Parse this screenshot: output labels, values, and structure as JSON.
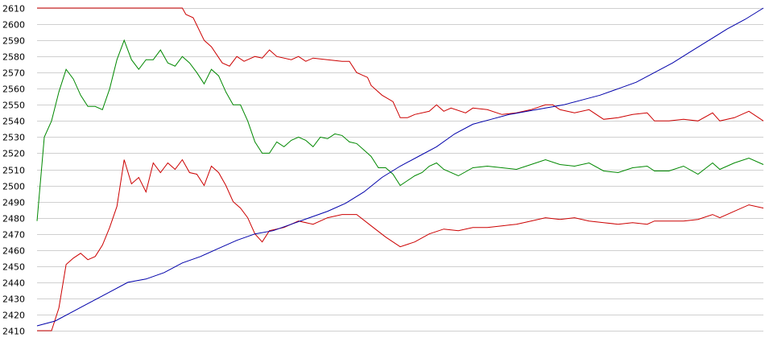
{
  "chart_data": {
    "type": "line",
    "title": "",
    "xlabel": "",
    "ylabel": "",
    "ylim": [
      2410,
      2610
    ],
    "xlim": [
      0,
      200
    ],
    "y_ticks": [
      "2410",
      "2420",
      "2430",
      "2440",
      "2450",
      "2460",
      "2470",
      "2480",
      "2490",
      "2500",
      "2510",
      "2520",
      "2530",
      "2540",
      "2550",
      "2560",
      "2570",
      "2580",
      "2590",
      "2600",
      "2610"
    ],
    "grid": "horizontal",
    "legend": "none",
    "series": [
      {
        "color": "#cc0000",
        "points": [
          [
            0,
            2610
          ],
          [
            20,
            2610
          ],
          [
            30,
            2610
          ],
          [
            40,
            2610
          ],
          [
            41,
            2606
          ],
          [
            43,
            2604
          ],
          [
            46,
            2590
          ],
          [
            48,
            2586
          ],
          [
            51,
            2576
          ],
          [
            53,
            2574
          ],
          [
            55,
            2580
          ],
          [
            57,
            2577
          ],
          [
            60,
            2580
          ],
          [
            62,
            2579
          ],
          [
            64,
            2584
          ],
          [
            66,
            2580
          ],
          [
            70,
            2578
          ],
          [
            72,
            2580
          ],
          [
            74,
            2577
          ],
          [
            76,
            2579
          ],
          [
            80,
            2578
          ],
          [
            84,
            2577
          ],
          [
            86,
            2577
          ],
          [
            88,
            2570
          ],
          [
            91,
            2567
          ],
          [
            92,
            2562
          ],
          [
            95,
            2556
          ],
          [
            98,
            2552
          ],
          [
            100,
            2542
          ],
          [
            102,
            2542
          ],
          [
            104,
            2544
          ],
          [
            108,
            2546
          ],
          [
            110,
            2550
          ],
          [
            112,
            2546
          ],
          [
            114,
            2548
          ],
          [
            118,
            2545
          ],
          [
            120,
            2548
          ],
          [
            124,
            2547
          ],
          [
            128,
            2544
          ],
          [
            132,
            2545
          ],
          [
            136,
            2547
          ],
          [
            140,
            2550
          ],
          [
            142,
            2550
          ],
          [
            144,
            2547
          ],
          [
            148,
            2545
          ],
          [
            152,
            2547
          ],
          [
            156,
            2541
          ],
          [
            160,
            2542
          ],
          [
            164,
            2544
          ],
          [
            168,
            2545
          ],
          [
            170,
            2540
          ],
          [
            174,
            2540
          ],
          [
            178,
            2541
          ],
          [
            182,
            2540
          ],
          [
            186,
            2545
          ],
          [
            188,
            2540
          ],
          [
            192,
            2542
          ],
          [
            196,
            2546
          ],
          [
            200,
            2540
          ]
        ]
      },
      {
        "color": "#008800",
        "points": [
          [
            0,
            2478
          ],
          [
            2,
            2530
          ],
          [
            4,
            2540
          ],
          [
            6,
            2558
          ],
          [
            8,
            2572
          ],
          [
            10,
            2566
          ],
          [
            12,
            2556
          ],
          [
            14,
            2549
          ],
          [
            16,
            2549
          ],
          [
            18,
            2547
          ],
          [
            20,
            2560
          ],
          [
            22,
            2578
          ],
          [
            24,
            2590
          ],
          [
            26,
            2578
          ],
          [
            28,
            2572
          ],
          [
            30,
            2578
          ],
          [
            32,
            2578
          ],
          [
            34,
            2584
          ],
          [
            36,
            2576
          ],
          [
            38,
            2574
          ],
          [
            40,
            2580
          ],
          [
            42,
            2576
          ],
          [
            44,
            2570
          ],
          [
            46,
            2563
          ],
          [
            48,
            2572
          ],
          [
            50,
            2568
          ],
          [
            52,
            2558
          ],
          [
            54,
            2550
          ],
          [
            56,
            2550
          ],
          [
            58,
            2540
          ],
          [
            60,
            2527
          ],
          [
            62,
            2520
          ],
          [
            64,
            2520
          ],
          [
            66,
            2527
          ],
          [
            68,
            2524
          ],
          [
            70,
            2528
          ],
          [
            72,
            2530
          ],
          [
            74,
            2528
          ],
          [
            76,
            2524
          ],
          [
            78,
            2530
          ],
          [
            80,
            2529
          ],
          [
            82,
            2532
          ],
          [
            84,
            2531
          ],
          [
            86,
            2527
          ],
          [
            88,
            2526
          ],
          [
            90,
            2522
          ],
          [
            92,
            2518
          ],
          [
            94,
            2511
          ],
          [
            96,
            2511
          ],
          [
            98,
            2507
          ],
          [
            100,
            2500
          ],
          [
            102,
            2503
          ],
          [
            104,
            2506
          ],
          [
            106,
            2508
          ],
          [
            108,
            2512
          ],
          [
            110,
            2514
          ],
          [
            112,
            2510
          ],
          [
            116,
            2506
          ],
          [
            120,
            2511
          ],
          [
            124,
            2512
          ],
          [
            128,
            2511
          ],
          [
            132,
            2510
          ],
          [
            136,
            2513
          ],
          [
            140,
            2516
          ],
          [
            144,
            2513
          ],
          [
            148,
            2512
          ],
          [
            152,
            2514
          ],
          [
            156,
            2509
          ],
          [
            160,
            2508
          ],
          [
            164,
            2511
          ],
          [
            168,
            2512
          ],
          [
            170,
            2509
          ],
          [
            174,
            2509
          ],
          [
            178,
            2512
          ],
          [
            182,
            2507
          ],
          [
            186,
            2514
          ],
          [
            188,
            2510
          ],
          [
            192,
            2514
          ],
          [
            196,
            2517
          ],
          [
            200,
            2513
          ]
        ]
      },
      {
        "color": "#cc0000",
        "points": [
          [
            0,
            2410
          ],
          [
            2,
            2410
          ],
          [
            4,
            2410
          ],
          [
            6,
            2424
          ],
          [
            8,
            2451
          ],
          [
            10,
            2455
          ],
          [
            12,
            2458
          ],
          [
            14,
            2454
          ],
          [
            16,
            2456
          ],
          [
            18,
            2463
          ],
          [
            20,
            2474
          ],
          [
            22,
            2487
          ],
          [
            24,
            2516
          ],
          [
            26,
            2501
          ],
          [
            28,
            2505
          ],
          [
            30,
            2496
          ],
          [
            32,
            2514
          ],
          [
            34,
            2508
          ],
          [
            36,
            2514
          ],
          [
            38,
            2510
          ],
          [
            40,
            2516
          ],
          [
            42,
            2508
          ],
          [
            44,
            2507
          ],
          [
            46,
            2500
          ],
          [
            48,
            2512
          ],
          [
            50,
            2508
          ],
          [
            52,
            2500
          ],
          [
            54,
            2490
          ],
          [
            56,
            2486
          ],
          [
            58,
            2480
          ],
          [
            60,
            2470
          ],
          [
            62,
            2465
          ],
          [
            64,
            2472
          ],
          [
            68,
            2474
          ],
          [
            72,
            2478
          ],
          [
            76,
            2476
          ],
          [
            80,
            2480
          ],
          [
            84,
            2482
          ],
          [
            88,
            2482
          ],
          [
            92,
            2475
          ],
          [
            96,
            2468
          ],
          [
            100,
            2462
          ],
          [
            104,
            2465
          ],
          [
            108,
            2470
          ],
          [
            112,
            2473
          ],
          [
            116,
            2472
          ],
          [
            120,
            2474
          ],
          [
            124,
            2474
          ],
          [
            128,
            2475
          ],
          [
            132,
            2476
          ],
          [
            136,
            2478
          ],
          [
            140,
            2480
          ],
          [
            144,
            2479
          ],
          [
            148,
            2480
          ],
          [
            152,
            2478
          ],
          [
            156,
            2477
          ],
          [
            160,
            2476
          ],
          [
            164,
            2477
          ],
          [
            168,
            2476
          ],
          [
            170,
            2478
          ],
          [
            174,
            2478
          ],
          [
            178,
            2478
          ],
          [
            182,
            2479
          ],
          [
            186,
            2482
          ],
          [
            188,
            2480
          ],
          [
            192,
            2484
          ],
          [
            196,
            2488
          ],
          [
            200,
            2486
          ]
        ]
      },
      {
        "color": "#0000aa",
        "points": [
          [
            0,
            2413
          ],
          [
            5,
            2416
          ],
          [
            10,
            2422
          ],
          [
            15,
            2428
          ],
          [
            20,
            2434
          ],
          [
            25,
            2440
          ],
          [
            30,
            2442
          ],
          [
            35,
            2446
          ],
          [
            40,
            2452
          ],
          [
            45,
            2456
          ],
          [
            50,
            2461
          ],
          [
            55,
            2466
          ],
          [
            60,
            2470
          ],
          [
            65,
            2472
          ],
          [
            70,
            2476
          ],
          [
            75,
            2480
          ],
          [
            80,
            2484
          ],
          [
            85,
            2489
          ],
          [
            90,
            2496
          ],
          [
            95,
            2505
          ],
          [
            100,
            2512
          ],
          [
            105,
            2518
          ],
          [
            110,
            2524
          ],
          [
            115,
            2532
          ],
          [
            120,
            2538
          ],
          [
            125,
            2541
          ],
          [
            130,
            2544
          ],
          [
            135,
            2546
          ],
          [
            140,
            2548
          ],
          [
            145,
            2550
          ],
          [
            150,
            2553
          ],
          [
            155,
            2556
          ],
          [
            160,
            2560
          ],
          [
            165,
            2564
          ],
          [
            170,
            2570
          ],
          [
            175,
            2576
          ],
          [
            180,
            2583
          ],
          [
            185,
            2590
          ],
          [
            190,
            2597
          ],
          [
            195,
            2603
          ],
          [
            200,
            2610
          ]
        ]
      }
    ]
  }
}
